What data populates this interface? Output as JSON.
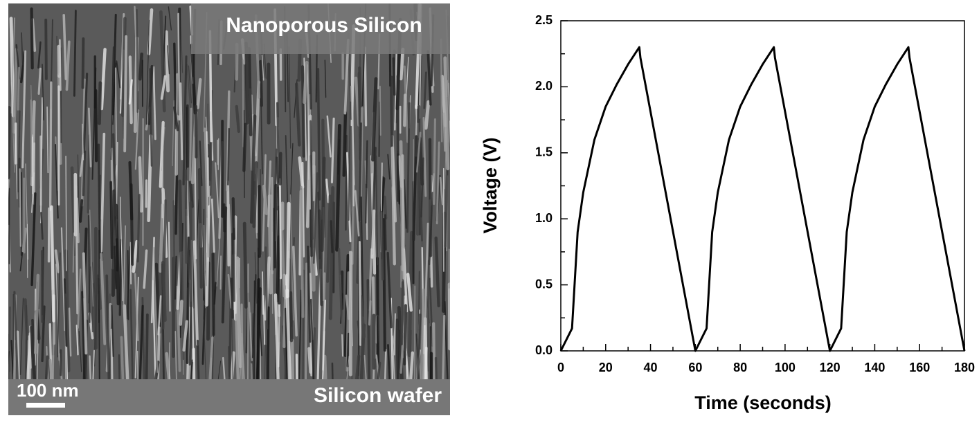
{
  "image": {
    "title": "Nanoporous Silicon",
    "scale_label": "100 nm",
    "substrate_label": "Silicon wafer"
  },
  "chart_data": {
    "type": "line",
    "xlabel": "Time (seconds)",
    "ylabel": "Voltage (V)",
    "x": [
      0,
      5,
      7.5,
      10,
      15,
      20,
      25,
      30,
      35,
      35.5,
      60,
      65,
      67.5,
      70,
      75,
      80,
      85,
      90,
      95,
      95.5,
      120,
      125,
      127.5,
      130,
      135,
      140,
      145,
      150,
      155,
      155.5,
      180
    ],
    "series": [
      {
        "name": "Voltage",
        "color": "#000000",
        "values": [
          0,
          0.17,
          0.9,
          1.2,
          1.6,
          1.85,
          2.02,
          2.17,
          2.3,
          2.22,
          0,
          0.17,
          0.9,
          1.2,
          1.6,
          1.85,
          2.02,
          2.17,
          2.3,
          2.22,
          0,
          0.17,
          0.9,
          1.2,
          1.6,
          1.85,
          2.02,
          2.17,
          2.3,
          2.22,
          0
        ]
      }
    ],
    "xlim": [
      0,
      180
    ],
    "xticks": [
      0,
      20,
      40,
      60,
      80,
      100,
      120,
      140,
      160,
      180
    ],
    "ylim": [
      0,
      2.5
    ],
    "yticks": [
      {
        "value": 0,
        "label": "0.0"
      },
      0.5,
      {
        "value": 1,
        "label": "1.0"
      },
      1.5,
      {
        "value": 2,
        "label": "2.0"
      },
      2.5
    ]
  }
}
